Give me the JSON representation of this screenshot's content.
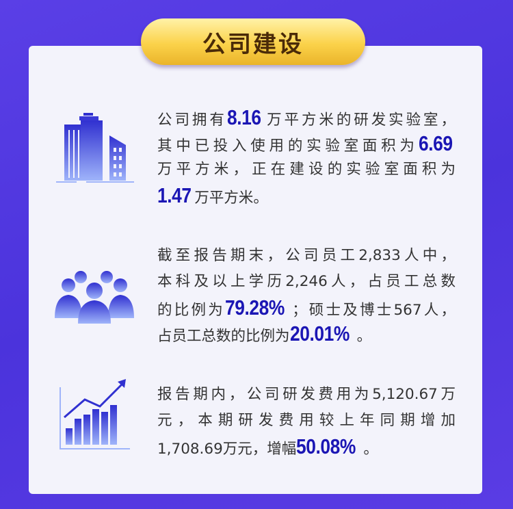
{
  "title": "公司建设",
  "colors": {
    "background": "#4b33dc",
    "card": "#f3f3fb",
    "highlight": "#1b16b4",
    "pill": "#fbd24a",
    "icon_top": "#3030d0",
    "icon_bottom": "#9fb4fa"
  },
  "sections": [
    {
      "icon": "buildings-icon",
      "lines": [
        [
          {
            "t": "公司拥有"
          },
          {
            "t": "8.16",
            "hl": true
          },
          {
            "t": "万平方米的研发实验室，"
          }
        ],
        [
          {
            "t": "其中已投入使用的实验室面积为"
          },
          {
            "t": "6.69",
            "hl": true
          }
        ],
        [
          {
            "t": "万平方米，正在建设的实验室面积为"
          }
        ],
        [
          {
            "t": "1.47",
            "hl": true
          },
          {
            "t": "万平方米。"
          }
        ]
      ]
    },
    {
      "icon": "people-icon",
      "lines": [
        [
          {
            "t": "截至报告期末，公司员工2,833人中，"
          }
        ],
        [
          {
            "t": "本科及以上学历2,246人，占员工总数"
          }
        ],
        [
          {
            "t": "的比例为"
          },
          {
            "t": "79.28%",
            "hl": true
          },
          {
            "t": "；硕士及博士567人，"
          }
        ],
        [
          {
            "t": "占员工总数的比例为"
          },
          {
            "t": "20.01%",
            "hl": true
          },
          {
            "t": "。"
          }
        ]
      ]
    },
    {
      "icon": "growth-chart-icon",
      "lines": [
        [
          {
            "t": "报告期内，公司研发费用为5,120.67万"
          }
        ],
        [
          {
            "t": "元，本期研发费用较上年同期增加"
          }
        ],
        [
          {
            "t": "1,708.69万元，增幅"
          },
          {
            "t": "50.08%",
            "hl": true
          },
          {
            "t": "。"
          }
        ]
      ]
    }
  ]
}
